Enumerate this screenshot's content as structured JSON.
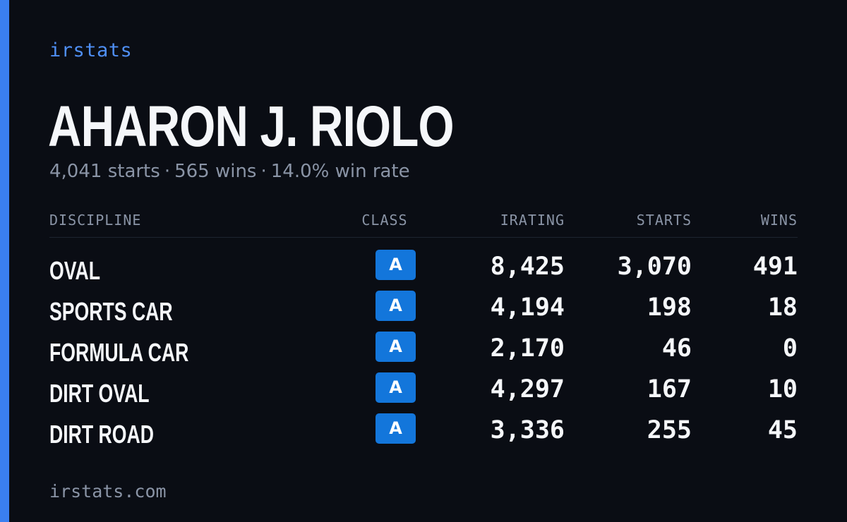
{
  "brand": "irstats",
  "driver": {
    "name": "AHARON J. RIOLO",
    "starts_text": "4,041 starts",
    "wins_text": "565 wins",
    "win_rate_text": "14.0% win rate",
    "separator": "·"
  },
  "table": {
    "headers": {
      "discipline": "DISCIPLINE",
      "class": "CLASS",
      "irating": "IRATING",
      "starts": "STARTS",
      "wins": "WINS"
    },
    "rows": [
      {
        "discipline": "OVAL",
        "class": "A",
        "irating": "8,425",
        "starts": "3,070",
        "wins": "491"
      },
      {
        "discipline": "SPORTS CAR",
        "class": "A",
        "irating": "4,194",
        "starts": "198",
        "wins": "18"
      },
      {
        "discipline": "FORMULA CAR",
        "class": "A",
        "irating": "2,170",
        "starts": "46",
        "wins": "0"
      },
      {
        "discipline": "DIRT OVAL",
        "class": "A",
        "irating": "4,297",
        "starts": "167",
        "wins": "10"
      },
      {
        "discipline": "DIRT ROAD",
        "class": "A",
        "irating": "3,336",
        "starts": "255",
        "wins": "45"
      }
    ]
  },
  "footer": "irstats.com",
  "colors": {
    "accent": "#3a7ff0",
    "brand_text": "#4f8ff5",
    "class_badge": "#1376db",
    "background": "#0a0d14",
    "muted_text": "#8a94a6"
  }
}
